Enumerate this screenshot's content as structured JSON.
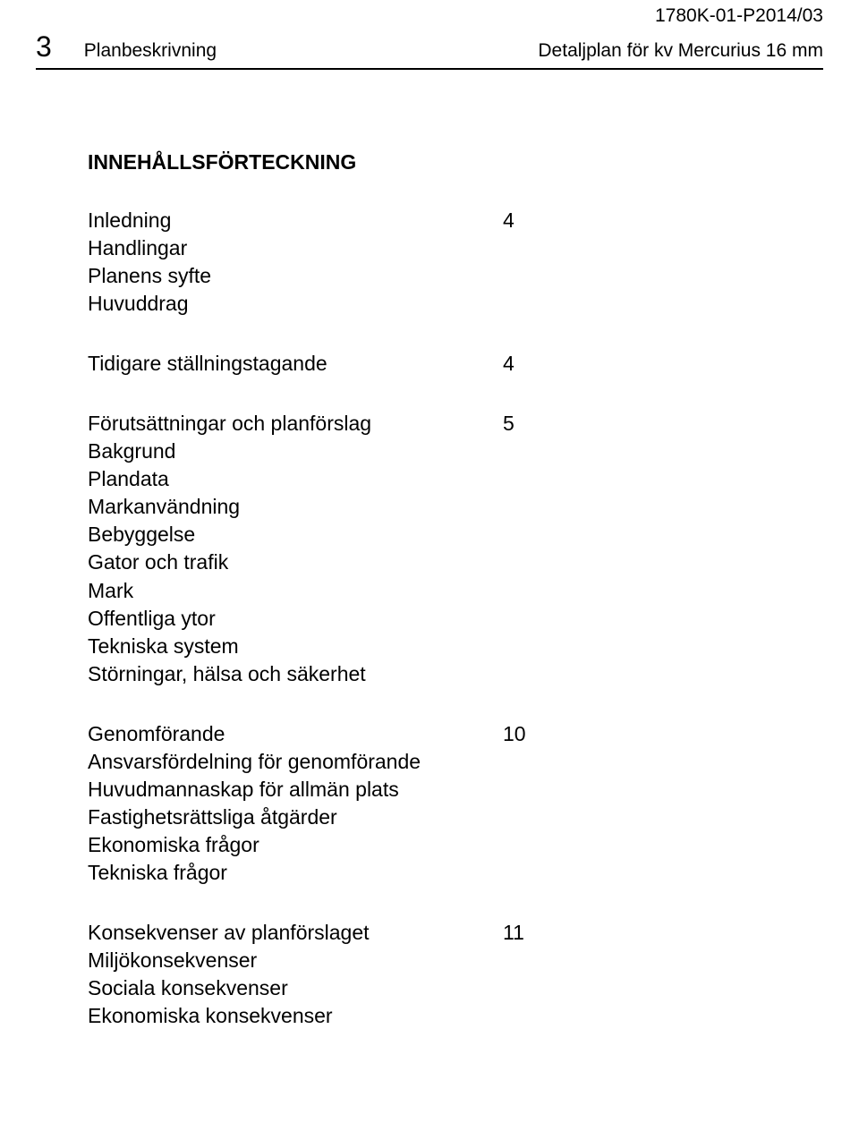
{
  "doc_id": "1780K-01-P2014/03",
  "header": {
    "page_number": "3",
    "left_label": "Planbeskrivning",
    "right_label": "Detaljplan för kv Mercurius 16 mm"
  },
  "toc": {
    "title": "INNEHÅLLSFÖRTECKNING",
    "groups": [
      {
        "head": "Inledning",
        "page": "4",
        "items": [
          "Handlingar",
          "Planens syfte",
          "Huvuddrag"
        ]
      },
      {
        "head": "Tidigare ställningstagande",
        "page": "4",
        "items": []
      },
      {
        "head": "Förutsättningar och planförslag",
        "page": "5",
        "items": [
          "Bakgrund",
          "Plandata",
          "Markanvändning",
          "Bebyggelse",
          "Gator och trafik",
          "Mark",
          "Offentliga ytor",
          "Tekniska system",
          "Störningar, hälsa och säkerhet"
        ]
      },
      {
        "head": "Genomförande",
        "page": "10",
        "items": [
          "Ansvarsfördelning för genomförande",
          "Huvudmannaskap för allmän plats",
          "Fastighetsrättsliga åtgärder",
          "Ekonomiska frågor",
          "Tekniska frågor"
        ]
      },
      {
        "head": "Konsekvenser av planförslaget",
        "page": "11",
        "items": [
          "Miljökonsekvenser",
          "Sociala konsekvenser",
          "Ekonomiska konsekvenser"
        ]
      }
    ]
  }
}
